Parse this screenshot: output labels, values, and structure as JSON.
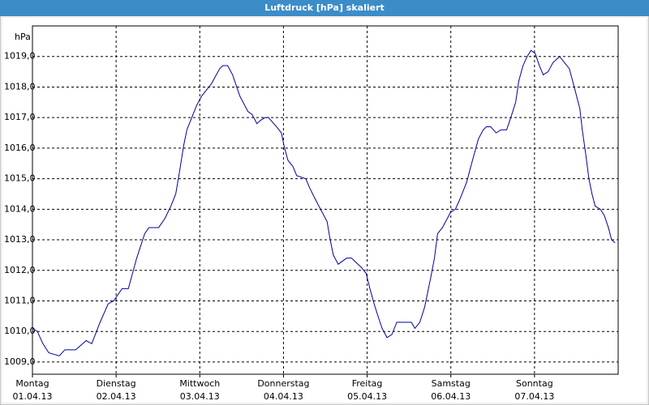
{
  "chart_data": {
    "type": "line",
    "title": "Luftdruck [hPa] skaliert",
    "y_label": "hPa",
    "x": [
      0,
      1.4,
      3.0,
      4.7,
      7.7,
      9.3,
      12.4,
      15.4,
      17.0,
      19.4,
      21.7,
      23.3,
      25.7,
      27.5,
      29.9,
      32.2,
      33.4,
      36.2,
      38.0,
      39.7,
      41.1,
      42.0,
      43.4,
      44.3,
      45.7,
      47.1,
      48.5,
      49.9,
      51.3,
      53.7,
      54.6,
      56.0,
      57.4,
      59.5,
      61.8,
      63.0,
      64.4,
      65.3,
      66.7,
      67.7,
      70.0,
      71.4,
      72.3,
      73.3,
      74.7,
      75.8,
      78.4,
      79.5,
      81.7,
      83.1,
      84.5,
      85.4,
      86.3,
      87.7,
      90.1,
      91.5,
      94.3,
      95.7,
      96.8,
      98.0,
      99.4,
      100.3,
      101.7,
      103.1,
      104.5,
      105.7,
      108.7,
      109.7,
      111.1,
      112.5,
      113.4,
      114.3,
      115.3,
      116.2,
      117.6,
      119.0,
      119.9,
      121.3,
      122.5,
      124.6,
      125.5,
      126.7,
      127.9,
      129.3,
      130.2,
      131.4,
      133.0,
      134.4,
      136.0,
      137.2,
      138.6,
      139.5,
      140.7,
      141.9,
      143.0,
      144.2,
      145.4,
      146.5,
      147.9,
      149.3,
      151.2,
      152.6,
      154.0,
      155.4,
      156.3,
      157.0,
      157.7,
      158.7,
      159.6,
      160.5,
      161.4,
      162.9,
      164.0,
      165.2,
      166.1,
      167.1
    ],
    "series": [
      {
        "name": "Luftdruck",
        "color": "#0000a0",
        "values": [
          1010.1,
          1010.0,
          1009.6,
          1009.3,
          1009.2,
          1009.4,
          1009.4,
          1009.7,
          1009.6,
          1010.3,
          1010.9,
          1011.0,
          1011.4,
          1011.4,
          1012.4,
          1013.2,
          1013.4,
          1013.4,
          1013.7,
          1014.1,
          1014.5,
          1015.1,
          1016.1,
          1016.6,
          1017.0,
          1017.4,
          1017.7,
          1017.9,
          1018.1,
          1018.6,
          1018.7,
          1018.7,
          1018.4,
          1017.7,
          1017.2,
          1017.1,
          1016.8,
          1016.9,
          1017.0,
          1017.0,
          1016.7,
          1016.5,
          1016.0,
          1015.6,
          1015.4,
          1015.1,
          1015.0,
          1014.7,
          1014.2,
          1013.9,
          1013.6,
          1013.0,
          1012.5,
          1012.2,
          1012.4,
          1012.4,
          1012.1,
          1011.9,
          1011.4,
          1010.9,
          1010.4,
          1010.1,
          1009.8,
          1009.9,
          1010.3,
          1010.3,
          1010.3,
          1010.1,
          1010.3,
          1010.8,
          1011.3,
          1011.8,
          1012.4,
          1013.2,
          1013.4,
          1013.7,
          1013.9,
          1014.0,
          1014.3,
          1014.9,
          1015.3,
          1015.8,
          1016.3,
          1016.6,
          1016.7,
          1016.7,
          1016.5,
          1016.6,
          1016.6,
          1017.0,
          1017.5,
          1018.2,
          1018.7,
          1019.0,
          1019.2,
          1019.1,
          1018.7,
          1018.4,
          1018.5,
          1018.8,
          1019.0,
          1018.8,
          1018.6,
          1018.0,
          1017.6,
          1017.3,
          1016.6,
          1015.8,
          1015.0,
          1014.5,
          1014.1,
          1014.0,
          1013.8,
          1013.4,
          1013.0,
          1012.9
        ]
      }
    ],
    "xlim": [
      0,
      168
    ],
    "xticks": [
      {
        "value": 0,
        "day": "Montag",
        "date": "01.04.13"
      },
      {
        "value": 24,
        "day": "Dienstag",
        "date": "02.04.13"
      },
      {
        "value": 48,
        "day": "Mittwoch",
        "date": "03.04.13"
      },
      {
        "value": 72,
        "day": "Donnerstag",
        "date": "04.04.13"
      },
      {
        "value": 96,
        "day": "Freitag",
        "date": "05.04.13"
      },
      {
        "value": 120,
        "day": "Samstag",
        "date": "06.04.13"
      },
      {
        "value": 144,
        "day": "Sonntag",
        "date": "07.04.13"
      }
    ],
    "ylim": [
      1008.6,
      1020
    ],
    "yticks": [
      {
        "value": 1009,
        "label": "1009,0"
      },
      {
        "value": 1010,
        "label": "1010,0"
      },
      {
        "value": 1011,
        "label": "1011,0"
      },
      {
        "value": 1012,
        "label": "1012,0"
      },
      {
        "value": 1013,
        "label": "1013,0"
      },
      {
        "value": 1014,
        "label": "1014,0"
      },
      {
        "value": 1015,
        "label": "1015,0"
      },
      {
        "value": 1016,
        "label": "1016,0"
      },
      {
        "value": 1017,
        "label": "1017,0"
      },
      {
        "value": 1018,
        "label": "1018,0"
      },
      {
        "value": 1019,
        "label": "1019,0"
      }
    ],
    "grid": true
  }
}
